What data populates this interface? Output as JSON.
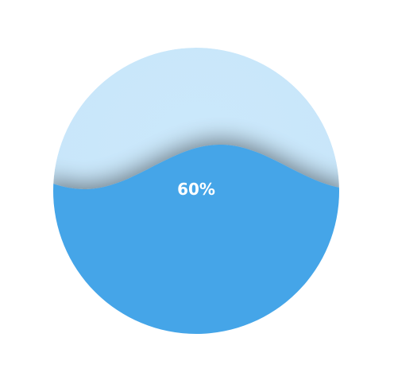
{
  "chart_data": {
    "type": "liquid-fill",
    "value": 60,
    "label": "60%",
    "colors": {
      "wave": "#45a5e8",
      "background": "#cbe8fb",
      "label": "#ffffff"
    }
  }
}
